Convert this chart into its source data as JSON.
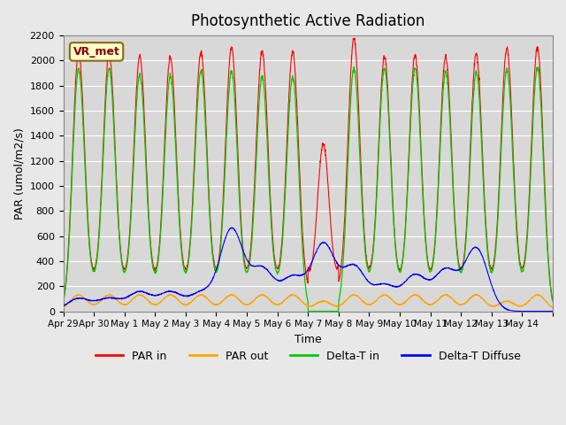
{
  "title": "Photosynthetic Active Radiation",
  "ylabel": "PAR (umol/m2/s)",
  "xlabel": "Time",
  "annotation": "VR_met",
  "ylim": [
    0,
    2200
  ],
  "background_color": "#e8e8e8",
  "plot_bg_color": "#d8d8d8",
  "grid_color": "#ffffff",
  "colors": {
    "PAR_in": "#ff0000",
    "PAR_out": "#ffa500",
    "Delta_T_in": "#00cc00",
    "Delta_T_Diffuse": "#0000ff"
  },
  "legend_labels": [
    "PAR in",
    "PAR out",
    "Delta-T in",
    "Delta-T Diffuse"
  ],
  "x_tick_labels": [
    "Apr 29",
    "Apr 30",
    "May 1",
    "May 2",
    "May 3",
    "May 4",
    "May 5",
    "May 6",
    "May 7",
    "May 8",
    "May 9",
    "May 10",
    "May 11",
    "May 12",
    "May 13",
    "May 14",
    ""
  ],
  "days": 16,
  "pts_per_day": 144,
  "peak_heights_PAR_in": [
    2080,
    2060,
    2050,
    2040,
    2080,
    2110,
    2080,
    2080,
    1340,
    2180,
    2040,
    2050,
    2050,
    2060,
    2110,
    2110
  ],
  "peak_heights_PAR_out": [
    130,
    130,
    130,
    130,
    130,
    130,
    130,
    130,
    80,
    130,
    130,
    130,
    130,
    130,
    80,
    130
  ],
  "peak_heights_Delta_T_in": [
    1940,
    1940,
    1900,
    1900,
    1930,
    1920,
    1880,
    1880,
    0,
    1950,
    1940,
    1940,
    1920,
    1920,
    1940,
    1950
  ],
  "peak_heights_Diffuse": [
    100,
    100,
    150,
    150,
    140,
    650,
    330,
    260,
    530,
    350,
    200,
    280,
    320,
    500,
    0,
    0
  ]
}
